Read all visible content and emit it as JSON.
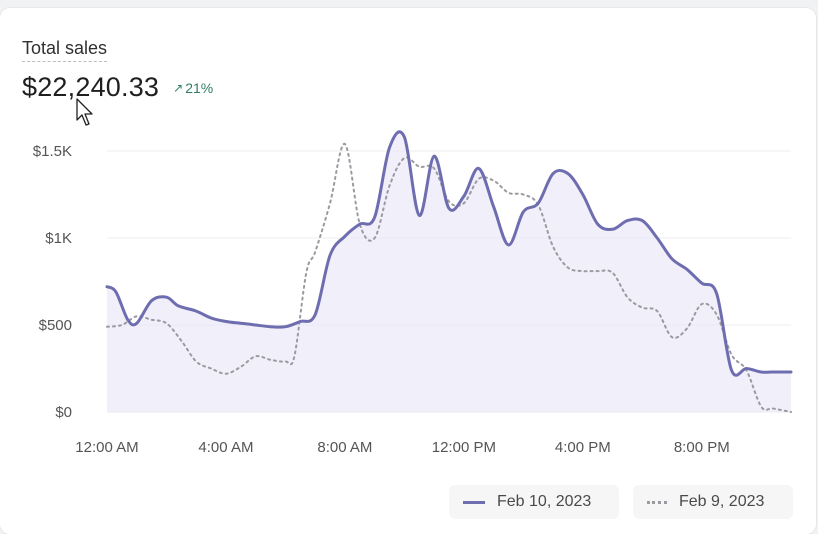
{
  "card": {
    "title": "Total sales",
    "total": "$22,240.33",
    "delta_arrow": "↗",
    "delta": "21%"
  },
  "colors": {
    "current": "#6d6db0",
    "current_fill": "#eceaf8",
    "previous": "#9a9aa0",
    "grid": "#ececee",
    "delta": "#2f7d5f"
  },
  "chart_data": {
    "type": "line",
    "title": "Total sales",
    "xlabel": "",
    "ylabel": "",
    "x_ticks": [
      "12:00 AM",
      "4:00 AM",
      "8:00 AM",
      "12:00 PM",
      "4:00 PM",
      "8:00 PM"
    ],
    "y_ticks": [
      "$0",
      "$500",
      "$1K",
      "$1.5K"
    ],
    "ylim": [
      0,
      1500
    ],
    "x_range_hours": [
      0,
      23
    ],
    "grid": true,
    "legend": "bottom-right",
    "series": [
      {
        "name": "Feb 10, 2023",
        "style": "solid",
        "x": [
          0,
          0.3,
          0.7,
          1,
          1.5,
          2,
          2.4,
          3,
          3.5,
          4,
          4.5,
          5,
          5.5,
          6,
          6.5,
          7,
          7.5,
          8,
          8.5,
          9,
          9.5,
          10,
          10.5,
          11,
          11.5,
          12,
          12.5,
          13,
          13.5,
          14,
          14.5,
          15,
          15.5,
          16,
          16.5,
          17,
          17.5,
          18,
          18.5,
          19,
          19.5,
          20,
          20.5,
          21,
          21.5,
          22,
          22.4,
          23
        ],
        "y": [
          720,
          690,
          530,
          510,
          640,
          660,
          610,
          580,
          540,
          520,
          510,
          500,
          490,
          490,
          520,
          560,
          900,
          1010,
          1080,
          1120,
          1520,
          1580,
          1130,
          1470,
          1170,
          1240,
          1400,
          1180,
          960,
          1150,
          1200,
          1370,
          1370,
          1250,
          1080,
          1050,
          1100,
          1100,
          1000,
          880,
          820,
          740,
          680,
          240,
          250,
          230,
          230,
          230
        ]
      },
      {
        "name": "Feb 9, 2023",
        "style": "dotted",
        "x": [
          0,
          0.5,
          1,
          1.5,
          2,
          2.5,
          3,
          3.5,
          4,
          4.5,
          5,
          5.5,
          6,
          6.3,
          6.7,
          7,
          7.5,
          8,
          8.5,
          9,
          9.5,
          10,
          10.5,
          11,
          11.5,
          12,
          12.5,
          13,
          13.5,
          14,
          14.5,
          15,
          15.5,
          16,
          16.5,
          17,
          17.5,
          18,
          18.5,
          19,
          19.5,
          20,
          20.5,
          21,
          21.5,
          22,
          22.4,
          23
        ],
        "y": [
          490,
          500,
          550,
          530,
          510,
          410,
          290,
          250,
          220,
          260,
          320,
          300,
          290,
          320,
          800,
          920,
          1200,
          1540,
          1080,
          1000,
          1300,
          1460,
          1410,
          1400,
          1210,
          1200,
          1340,
          1330,
          1260,
          1250,
          1190,
          950,
          830,
          810,
          810,
          800,
          660,
          600,
          580,
          430,
          480,
          620,
          560,
          330,
          240,
          30,
          20,
          0
        ]
      }
    ]
  },
  "legend": {
    "current_label": "Feb 10, 2023",
    "previous_label": "Feb 9, 2023"
  }
}
